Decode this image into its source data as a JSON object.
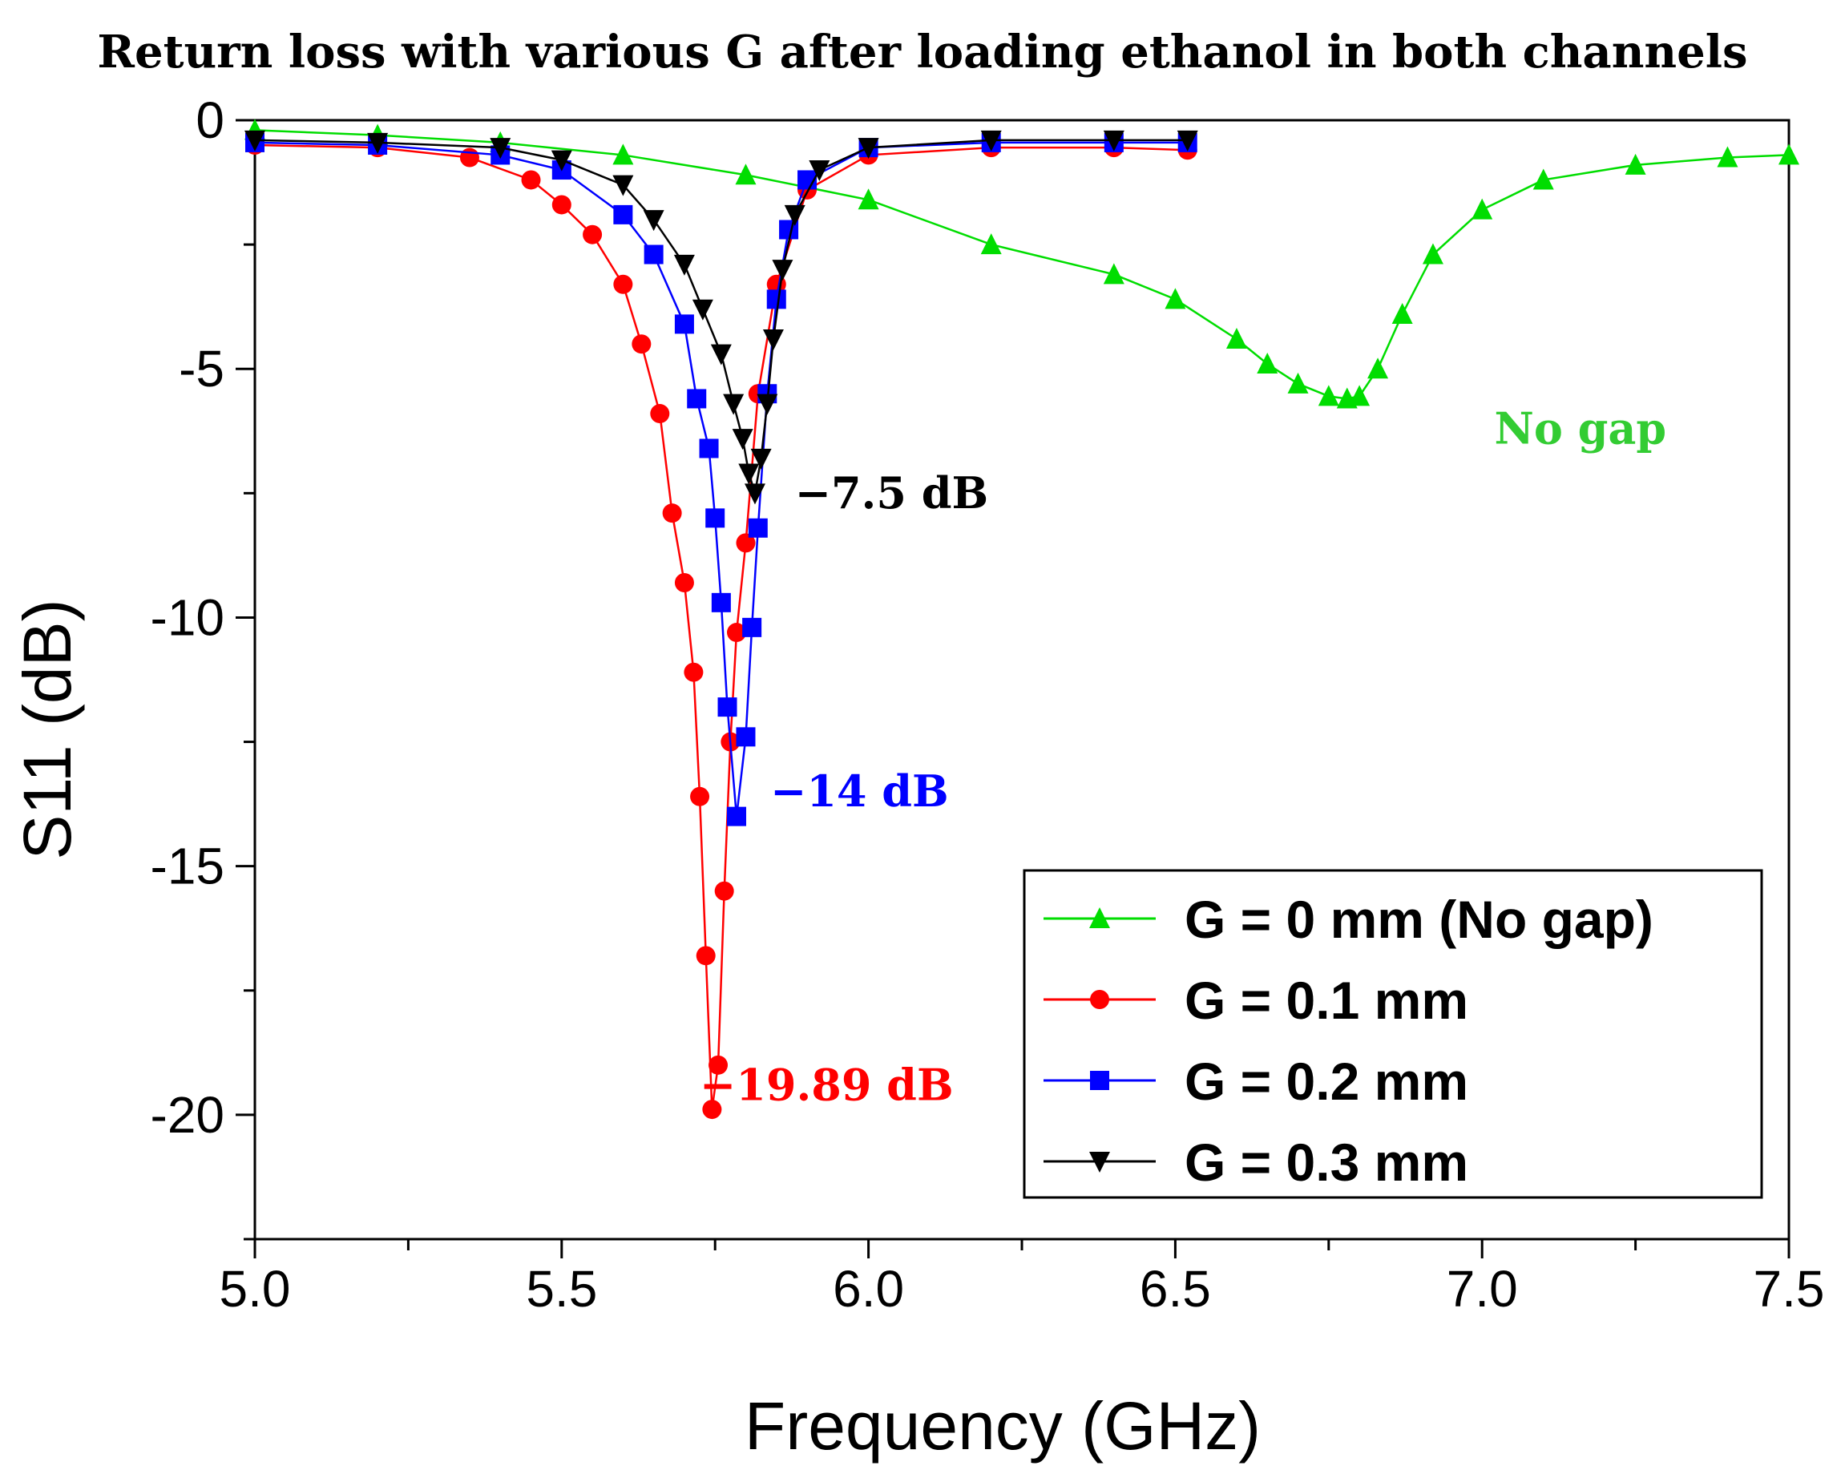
{
  "chart_data": {
    "type": "line",
    "title": "Return loss with various G after loading ethanol in both channels",
    "xlabel": "Frequency (GHz)",
    "ylabel": "S11 (dB)",
    "xlim": [
      5.0,
      7.5
    ],
    "ylim": [
      -22.5,
      0
    ],
    "x_ticks": [
      5.0,
      5.5,
      6.0,
      6.5,
      7.0,
      7.5
    ],
    "x_tick_labels": [
      "5.0",
      "5.5",
      "6.0",
      "6.5",
      "7.0",
      "7.5"
    ],
    "y_ticks": [
      0,
      -5,
      -10,
      -15,
      -20
    ],
    "y_tick_labels": [
      "0",
      "-5",
      "-10",
      "-15",
      "-20"
    ],
    "grid": false,
    "legend_position": "bottom-right",
    "series": [
      {
        "name": "G = 0 mm (No gap)",
        "color": "#00dd00",
        "marker": "triangle-up",
        "x": [
          5.0,
          5.2,
          5.4,
          5.6,
          5.8,
          6.0,
          6.2,
          6.4,
          6.5,
          6.6,
          6.65,
          6.7,
          6.75,
          6.78,
          6.8,
          6.83,
          6.87,
          6.92,
          7.0,
          7.1,
          7.25,
          7.4,
          7.5
        ],
        "y": [
          -0.2,
          -0.3,
          -0.45,
          -0.7,
          -1.1,
          -1.6,
          -2.5,
          -3.1,
          -3.6,
          -4.4,
          -4.9,
          -5.3,
          -5.55,
          -5.6,
          -5.55,
          -5.0,
          -3.9,
          -2.7,
          -1.8,
          -1.2,
          -0.9,
          -0.75,
          -0.7
        ]
      },
      {
        "name": "G = 0.1 mm",
        "color": "#ff0000",
        "marker": "circle",
        "x": [
          5.0,
          5.2,
          5.35,
          5.45,
          5.5,
          5.55,
          5.6,
          5.63,
          5.66,
          5.68,
          5.7,
          5.715,
          5.725,
          5.735,
          5.745,
          5.755,
          5.765,
          5.775,
          5.785,
          5.8,
          5.82,
          5.85,
          5.9,
          6.0,
          6.2,
          6.4,
          6.52
        ],
        "y": [
          -0.5,
          -0.55,
          -0.75,
          -1.2,
          -1.7,
          -2.3,
          -3.3,
          -4.5,
          -5.9,
          -7.9,
          -9.3,
          -11.1,
          -13.6,
          -16.8,
          -19.89,
          -19.0,
          -15.5,
          -12.5,
          -10.3,
          -8.5,
          -5.5,
          -3.3,
          -1.4,
          -0.7,
          -0.55,
          -0.55,
          -0.6
        ]
      },
      {
        "name": "G = 0.2 mm",
        "color": "#0000ff",
        "marker": "square",
        "x": [
          5.0,
          5.2,
          5.4,
          5.5,
          5.6,
          5.65,
          5.7,
          5.72,
          5.74,
          5.75,
          5.76,
          5.77,
          5.785,
          5.8,
          5.81,
          5.82,
          5.835,
          5.85,
          5.87,
          5.9,
          6.0,
          6.2,
          6.4,
          6.52
        ],
        "y": [
          -0.45,
          -0.5,
          -0.7,
          -1.0,
          -1.9,
          -2.7,
          -4.1,
          -5.6,
          -6.6,
          -8.0,
          -9.7,
          -11.8,
          -14.0,
          -12.4,
          -10.2,
          -8.2,
          -5.5,
          -3.6,
          -2.2,
          -1.2,
          -0.55,
          -0.45,
          -0.45,
          -0.45
        ]
      },
      {
        "name": "G = 0.3 mm",
        "color": "#000000",
        "marker": "triangle-down",
        "x": [
          5.0,
          5.2,
          5.4,
          5.5,
          5.6,
          5.65,
          5.7,
          5.73,
          5.76,
          5.78,
          5.795,
          5.805,
          5.815,
          5.825,
          5.835,
          5.845,
          5.86,
          5.88,
          5.92,
          6.0,
          6.2,
          6.4,
          6.52
        ],
        "y": [
          -0.4,
          -0.45,
          -0.55,
          -0.8,
          -1.3,
          -2.0,
          -2.9,
          -3.8,
          -4.7,
          -5.7,
          -6.4,
          -7.1,
          -7.5,
          -6.8,
          -5.7,
          -4.4,
          -3.0,
          -1.9,
          -1.0,
          -0.55,
          -0.4,
          -0.4,
          -0.4
        ]
      }
    ],
    "annotations": [
      {
        "text": "No gap",
        "color": "#33cc33",
        "x": 7.02,
        "y": -6.5
      },
      {
        "text": "−7.5 dB",
        "color": "#000000",
        "x": 5.88,
        "y": -7.8
      },
      {
        "text": "−14 dB",
        "color": "#0000ff",
        "x": 5.84,
        "y": -13.8
      },
      {
        "text": "−19.89 dB",
        "color": "#ff0000",
        "x": 5.725,
        "y": -19.7
      }
    ]
  }
}
